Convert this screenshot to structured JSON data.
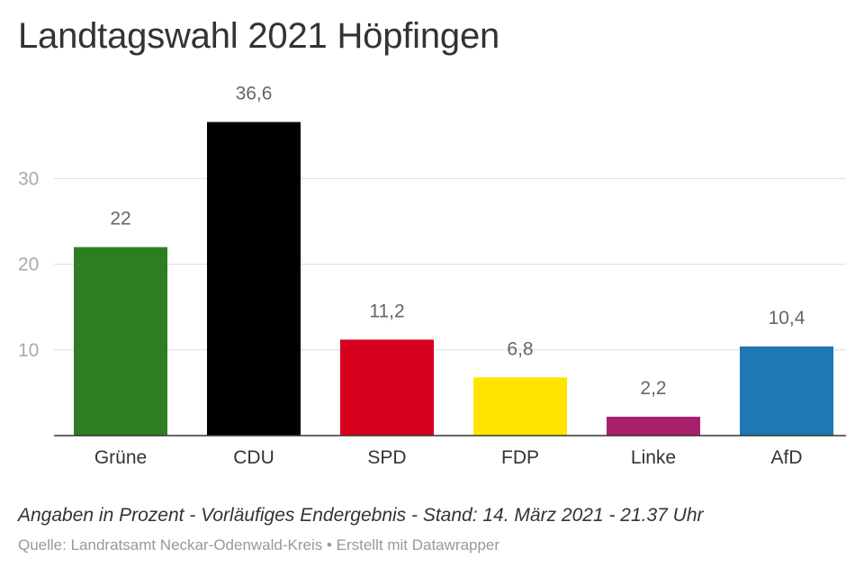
{
  "chart_data": {
    "type": "bar",
    "title": "Landtagswahl 2021 Höpfingen",
    "categories": [
      "Grüne",
      "CDU",
      "SPD",
      "FDP",
      "Linke",
      "AfD"
    ],
    "values": [
      22,
      36.6,
      11.2,
      6.8,
      2.2,
      10.4
    ],
    "value_labels": [
      "22",
      "36,6",
      "11,2",
      "6,8",
      "2,2",
      "10,4"
    ],
    "colors": [
      "#2e7d22",
      "#000000",
      "#d6001e",
      "#ffe500",
      "#a8206b",
      "#1f77b4"
    ],
    "yticks": [
      10,
      20,
      30
    ],
    "ylim": [
      0,
      38
    ],
    "grid": true,
    "xlabel": "",
    "ylabel": "",
    "description": "Angaben in Prozent - Vorläufiges Endergebnis - Stand: 14. März 2021 - 21.37 Uhr",
    "footer": "Quelle: Landratsamt Neckar-Odenwald-Kreis • Erstellt mit Datawrapper"
  }
}
